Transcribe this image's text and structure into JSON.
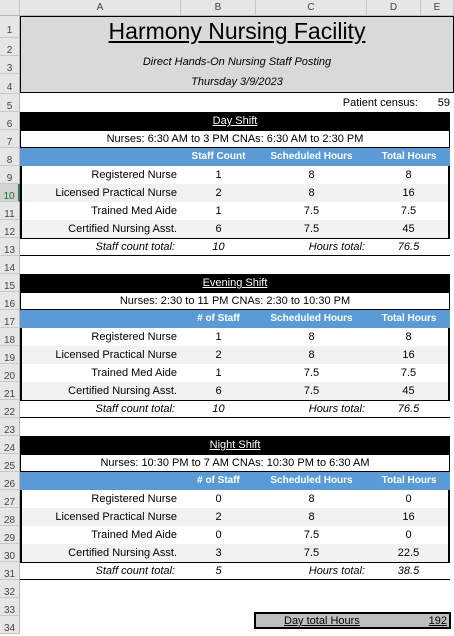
{
  "columns": [
    "A",
    "B",
    "C",
    "D",
    "E"
  ],
  "rows": [
    "1",
    "2",
    "3",
    "4",
    "5",
    "6",
    "7",
    "8",
    "9",
    "10",
    "11",
    "12",
    "13",
    "14",
    "15",
    "16",
    "17",
    "18",
    "19",
    "20",
    "21",
    "22",
    "23",
    "24",
    "25",
    "26",
    "27",
    "28",
    "29",
    "30",
    "31",
    "32",
    "33",
    "34"
  ],
  "selected_row": "10",
  "header": {
    "title": "Harmony Nursing Facility",
    "subtitle": "Direct Hands-On Nursing Staff Posting",
    "date": "Thursday 3/9/2023",
    "census_label": "Patient census:",
    "census_value": "59"
  },
  "shifts": [
    {
      "name": "Day Shift",
      "times": "Nurses: 6:30 AM to 3 PM CNAs: 6:30 AM to 2:30 PM",
      "col_staff": "Staff Count",
      "col_sched": "Scheduled Hours",
      "col_total": "Total Hours",
      "rows": [
        {
          "role": "Registered Nurse",
          "staff": "1",
          "sched": "8",
          "total": "8"
        },
        {
          "role": "Licensed Practical Nurse",
          "staff": "2",
          "sched": "8",
          "total": "16"
        },
        {
          "role": "Trained Med Aide",
          "staff": "1",
          "sched": "7.5",
          "total": "7.5"
        },
        {
          "role": "Certified Nursing Asst.",
          "staff": "6",
          "sched": "7.5",
          "total": "45"
        }
      ],
      "staff_total_label": "Staff count total:",
      "staff_total": "10",
      "hours_total_label": "Hours total:",
      "hours_total": "76.5"
    },
    {
      "name": "Evening Shift",
      "times": "Nurses: 2:30 to 11 PM CNAs: 2:30 to 10:30 PM",
      "col_staff": "# of Staff",
      "col_sched": "Scheduled Hours",
      "col_total": "Total Hours",
      "rows": [
        {
          "role": "Registered Nurse",
          "staff": "1",
          "sched": "8",
          "total": "8"
        },
        {
          "role": "Licensed Practical Nurse",
          "staff": "2",
          "sched": "8",
          "total": "16"
        },
        {
          "role": "Trained Med Aide",
          "staff": "1",
          "sched": "7.5",
          "total": "7.5"
        },
        {
          "role": "Certified Nursing Asst.",
          "staff": "6",
          "sched": "7.5",
          "total": "45"
        }
      ],
      "staff_total_label": "Staff count total:",
      "staff_total": "10",
      "hours_total_label": "Hours total:",
      "hours_total": "76.5"
    },
    {
      "name": "Night Shift",
      "times": "Nurses: 10:30 PM to 7 AM CNAs: 10:30 PM to 6:30 AM",
      "col_staff": "# of Staff",
      "col_sched": "Scheduled Hours",
      "col_total": "Total Hours",
      "rows": [
        {
          "role": "Registered Nurse",
          "staff": "0",
          "sched": "8",
          "total": "0"
        },
        {
          "role": "Licensed Practical Nurse",
          "staff": "2",
          "sched": "8",
          "total": "16"
        },
        {
          "role": "Trained Med Aide",
          "staff": "0",
          "sched": "7.5",
          "total": "0"
        },
        {
          "role": "Certified Nursing Asst.",
          "staff": "3",
          "sched": "7.5",
          "total": "22.5"
        }
      ],
      "staff_total_label": "Staff count total:",
      "staff_total": "5",
      "hours_total_label": "Hours total:",
      "hours_total": "38.5"
    }
  ],
  "day_total": {
    "label": "Day total Hours",
    "value": "192"
  },
  "colors": {
    "header_blue": "#5b9bd5",
    "title_gray": "#d9d9d9",
    "black_bar": "#000000"
  }
}
